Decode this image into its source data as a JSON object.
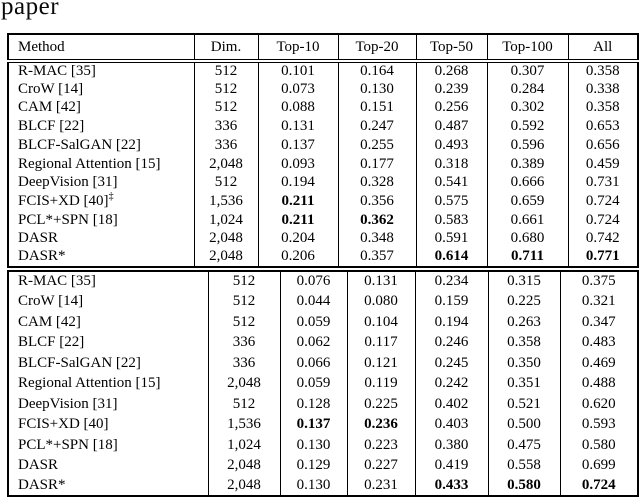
{
  "page": {
    "caption_fragment": "paper"
  },
  "columns": [
    "Method",
    "Dim.",
    "Top-10",
    "Top-20",
    "Top-50",
    "Top-100",
    "All"
  ],
  "tables": [
    {
      "name": "upper-results",
      "rows": [
        {
          "method": "R-MAC [35]",
          "sup": "",
          "dim": "512",
          "values": [
            "0.101",
            "0.164",
            "0.268",
            "0.307",
            "0.358"
          ],
          "bold": [
            false,
            false,
            false,
            false,
            false
          ]
        },
        {
          "method": "CroW [14]",
          "sup": "",
          "dim": "512",
          "values": [
            "0.073",
            "0.130",
            "0.239",
            "0.284",
            "0.338"
          ],
          "bold": [
            false,
            false,
            false,
            false,
            false
          ]
        },
        {
          "method": "CAM [42]",
          "sup": "",
          "dim": "512",
          "values": [
            "0.088",
            "0.151",
            "0.256",
            "0.302",
            "0.358"
          ],
          "bold": [
            false,
            false,
            false,
            false,
            false
          ]
        },
        {
          "method": "BLCF [22]",
          "sup": "",
          "dim": "336",
          "values": [
            "0.131",
            "0.247",
            "0.487",
            "0.592",
            "0.653"
          ],
          "bold": [
            false,
            false,
            false,
            false,
            false
          ]
        },
        {
          "method": "BLCF-SalGAN [22]",
          "sup": "",
          "dim": "336",
          "values": [
            "0.137",
            "0.255",
            "0.493",
            "0.596",
            "0.656"
          ],
          "bold": [
            false,
            false,
            false,
            false,
            false
          ]
        },
        {
          "method": "Regional Attention [15]",
          "sup": "",
          "dim": "2,048",
          "values": [
            "0.093",
            "0.177",
            "0.318",
            "0.389",
            "0.459"
          ],
          "bold": [
            false,
            false,
            false,
            false,
            false
          ]
        },
        {
          "method": "DeepVision [31]",
          "sup": "",
          "dim": "512",
          "values": [
            "0.194",
            "0.328",
            "0.541",
            "0.666",
            "0.731"
          ],
          "bold": [
            false,
            false,
            false,
            false,
            false
          ]
        },
        {
          "method": "FCIS+XD [40]",
          "sup": "‡",
          "dim": "1,536",
          "values": [
            "0.211",
            "0.356",
            "0.575",
            "0.659",
            "0.724"
          ],
          "bold": [
            true,
            false,
            false,
            false,
            false
          ]
        },
        {
          "method": "PCL*+SPN [18]",
          "sup": "",
          "dim": "1,024",
          "values": [
            "0.211",
            "0.362",
            "0.583",
            "0.661",
            "0.724"
          ],
          "bold": [
            true,
            true,
            false,
            false,
            false
          ]
        },
        {
          "method": "DASR",
          "sup": "",
          "dim": "2,048",
          "values": [
            "0.204",
            "0.348",
            "0.591",
            "0.680",
            "0.742"
          ],
          "bold": [
            false,
            false,
            false,
            false,
            false
          ]
        },
        {
          "method": "DASR*",
          "sup": "",
          "dim": "2,048",
          "values": [
            "0.206",
            "0.357",
            "0.614",
            "0.711",
            "0.771"
          ],
          "bold": [
            false,
            false,
            true,
            true,
            true
          ]
        }
      ]
    },
    {
      "name": "lower-results",
      "rows": [
        {
          "method": "R-MAC [35]",
          "sup": "",
          "dim": "512",
          "values": [
            "0.076",
            "0.131",
            "0.234",
            "0.315",
            "0.375"
          ],
          "bold": [
            false,
            false,
            false,
            false,
            false
          ]
        },
        {
          "method": "CroW [14]",
          "sup": "",
          "dim": "512",
          "values": [
            "0.044",
            "0.080",
            "0.159",
            "0.225",
            "0.321"
          ],
          "bold": [
            false,
            false,
            false,
            false,
            false
          ]
        },
        {
          "method": "CAM [42]",
          "sup": "",
          "dim": "512",
          "values": [
            "0.059",
            "0.104",
            "0.194",
            "0.263",
            "0.347"
          ],
          "bold": [
            false,
            false,
            false,
            false,
            false
          ]
        },
        {
          "method": "BLCF [22]",
          "sup": "",
          "dim": "336",
          "values": [
            "0.062",
            "0.117",
            "0.246",
            "0.358",
            "0.483"
          ],
          "bold": [
            false,
            false,
            false,
            false,
            false
          ]
        },
        {
          "method": "BLCF-SalGAN [22]",
          "sup": "",
          "dim": "336",
          "values": [
            "0.066",
            "0.121",
            "0.245",
            "0.350",
            "0.469"
          ],
          "bold": [
            false,
            false,
            false,
            false,
            false
          ]
        },
        {
          "method": "Regional Attention [15]",
          "sup": "",
          "dim": "2,048",
          "values": [
            "0.059",
            "0.119",
            "0.242",
            "0.351",
            "0.488"
          ],
          "bold": [
            false,
            false,
            false,
            false,
            false
          ]
        },
        {
          "method": "DeepVision [31]",
          "sup": "",
          "dim": "512",
          "values": [
            "0.128",
            "0.225",
            "0.402",
            "0.521",
            "0.620"
          ],
          "bold": [
            false,
            false,
            false,
            false,
            false
          ]
        },
        {
          "method": "FCIS+XD [40]",
          "sup": "",
          "dim": "1,536",
          "values": [
            "0.137",
            "0.236",
            "0.403",
            "0.500",
            "0.593"
          ],
          "bold": [
            true,
            true,
            false,
            false,
            false
          ]
        },
        {
          "method": "PCL*+SPN [18]",
          "sup": "",
          "dim": "1,024",
          "values": [
            "0.130",
            "0.223",
            "0.380",
            "0.475",
            "0.580"
          ],
          "bold": [
            false,
            false,
            false,
            false,
            false
          ]
        },
        {
          "method": "DASR",
          "sup": "",
          "dim": "2,048",
          "values": [
            "0.129",
            "0.227",
            "0.419",
            "0.558",
            "0.699"
          ],
          "bold": [
            false,
            false,
            false,
            false,
            false
          ]
        },
        {
          "method": "DASR*",
          "sup": "",
          "dim": "2,048",
          "values": [
            "0.130",
            "0.231",
            "0.433",
            "0.580",
            "0.724"
          ],
          "bold": [
            false,
            false,
            true,
            true,
            true
          ]
        }
      ]
    }
  ]
}
